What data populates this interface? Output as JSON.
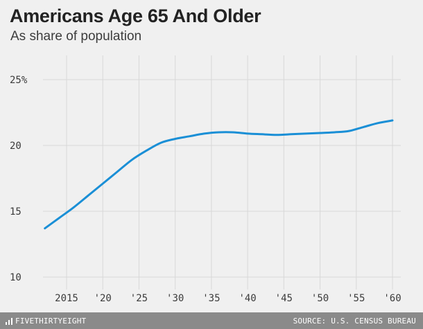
{
  "title": "Americans Age 65 And Older",
  "subtitle": "As share of population",
  "footer": {
    "brand": "FIVETHIRTYEIGHT",
    "source": "SOURCE: U.S. CENSUS BUREAU"
  },
  "colors": {
    "line": "#1a8fd6",
    "grid": "#d8d8d8",
    "background": "#f0f0f0",
    "footer": "#8a8a8a"
  },
  "chart_data": {
    "type": "line",
    "title": "Americans Age 65 And Older",
    "subtitle": "As share of population",
    "xlabel": "",
    "ylabel": "",
    "xlim": [
      2012,
      2060
    ],
    "ylim": [
      10,
      25
    ],
    "grid": true,
    "y_ticks": [
      {
        "value": 25,
        "label": "25%"
      },
      {
        "value": 20,
        "label": "20"
      },
      {
        "value": 15,
        "label": "15"
      },
      {
        "value": 10,
        "label": "10"
      }
    ],
    "x_ticks": [
      {
        "value": 2015,
        "label": "2015"
      },
      {
        "value": 2020,
        "label": "'20"
      },
      {
        "value": 2025,
        "label": "'25"
      },
      {
        "value": 2030,
        "label": "'30"
      },
      {
        "value": 2035,
        "label": "'35"
      },
      {
        "value": 2040,
        "label": "'40"
      },
      {
        "value": 2045,
        "label": "'45"
      },
      {
        "value": 2050,
        "label": "'50"
      },
      {
        "value": 2055,
        "label": "'55"
      },
      {
        "value": 2060,
        "label": "'60"
      }
    ],
    "series": [
      {
        "x": [
          2012,
          2014,
          2016,
          2018,
          2020,
          2022,
          2024,
          2026,
          2028,
          2030,
          2032,
          2034,
          2036,
          2038,
          2040,
          2042,
          2044,
          2046,
          2048,
          2050,
          2052,
          2054,
          2056,
          2058,
          2060
        ],
        "values": [
          13.7,
          14.5,
          15.3,
          16.2,
          17.1,
          18.0,
          18.9,
          19.6,
          20.2,
          20.5,
          20.7,
          20.9,
          21.0,
          21.0,
          20.9,
          20.85,
          20.8,
          20.85,
          20.9,
          20.95,
          21.0,
          21.1,
          21.4,
          21.7,
          21.9
        ]
      }
    ]
  }
}
